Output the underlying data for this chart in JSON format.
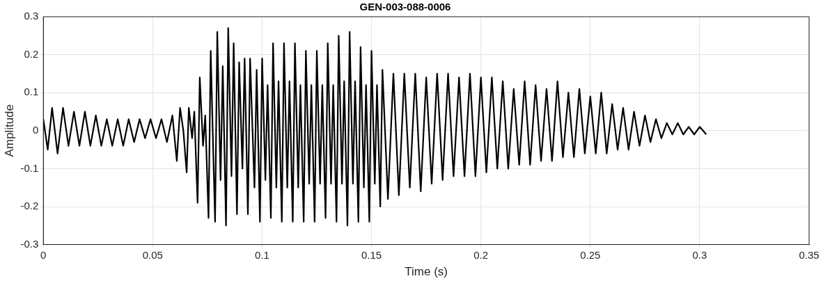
{
  "chart_data": {
    "type": "line",
    "title": "GEN-003-088-0006",
    "xlabel": "Time (s)",
    "ylabel": "Amplitude",
    "xlim": [
      0,
      0.35
    ],
    "xticks": [
      0,
      0.05,
      0.1,
      0.15,
      0.2,
      0.25,
      0.3,
      0.35
    ],
    "ylim": [
      -0.3,
      0.3
    ],
    "yticks": [
      -0.3,
      -0.2,
      -0.1,
      0,
      0.1,
      0.2,
      0.3
    ],
    "grid": true,
    "legend": false,
    "marker": "none",
    "line_style": "solid",
    "series": [
      {
        "color": "#000000",
        "x": [
          0,
          0.002,
          0.004,
          0.0065,
          0.009,
          0.0115,
          0.014,
          0.0165,
          0.019,
          0.0215,
          0.024,
          0.0265,
          0.029,
          0.0315,
          0.034,
          0.0365,
          0.039,
          0.0415,
          0.044,
          0.0465,
          0.049,
          0.0515,
          0.054,
          0.0565,
          0.059,
          0.061,
          0.0625,
          0.064,
          0.0655,
          0.0665,
          0.068,
          0.069,
          0.0705,
          0.0715,
          0.073,
          0.074,
          0.0755,
          0.0765,
          0.0775,
          0.0785,
          0.0795,
          0.081,
          0.082,
          0.0835,
          0.0845,
          0.086,
          0.087,
          0.0885,
          0.0895,
          0.091,
          0.092,
          0.0935,
          0.0945,
          0.0965,
          0.0975,
          0.099,
          0.1,
          0.1015,
          0.1025,
          0.104,
          0.105,
          0.1065,
          0.1075,
          0.109,
          0.11,
          0.1115,
          0.1125,
          0.114,
          0.115,
          0.1165,
          0.1175,
          0.119,
          0.12,
          0.1215,
          0.1225,
          0.124,
          0.125,
          0.1265,
          0.1275,
          0.129,
          0.13,
          0.1315,
          0.1325,
          0.134,
          0.135,
          0.1365,
          0.1375,
          0.139,
          0.14,
          0.1415,
          0.1425,
          0.144,
          0.145,
          0.1465,
          0.1475,
          0.149,
          0.15,
          0.1515,
          0.1525,
          0.154,
          0.155,
          0.1575,
          0.16,
          0.1625,
          0.165,
          0.1675,
          0.17,
          0.1725,
          0.175,
          0.1775,
          0.18,
          0.1825,
          0.185,
          0.1875,
          0.19,
          0.1925,
          0.195,
          0.1975,
          0.2,
          0.2025,
          0.205,
          0.2075,
          0.21,
          0.2125,
          0.215,
          0.2175,
          0.22,
          0.2225,
          0.225,
          0.2275,
          0.23,
          0.2325,
          0.235,
          0.2375,
          0.24,
          0.2425,
          0.245,
          0.2475,
          0.25,
          0.2525,
          0.255,
          0.2575,
          0.26,
          0.2625,
          0.265,
          0.2675,
          0.27,
          0.2725,
          0.275,
          0.2775,
          0.28,
          0.2825,
          0.285,
          0.2875,
          0.29,
          0.2925,
          0.295,
          0.2975,
          0.3,
          0.303
        ],
        "values": [
          0.03,
          -0.05,
          0.06,
          -0.06,
          0.06,
          -0.04,
          0.05,
          -0.04,
          0.05,
          -0.04,
          0.04,
          -0.04,
          0.03,
          -0.04,
          0.03,
          -0.04,
          0.03,
          -0.03,
          0.03,
          -0.02,
          0.03,
          -0.02,
          0.03,
          -0.03,
          0.04,
          -0.08,
          0.06,
          0.0,
          -0.11,
          0.06,
          -0.02,
          0.05,
          -0.19,
          0.14,
          -0.04,
          0.04,
          -0.23,
          0.21,
          -0.02,
          -0.24,
          0.26,
          -0.13,
          0.17,
          -0.25,
          0.27,
          -0.12,
          0.23,
          -0.22,
          0.18,
          -0.1,
          0.19,
          -0.22,
          0.19,
          -0.15,
          0.16,
          -0.24,
          0.19,
          -0.13,
          0.12,
          -0.23,
          0.23,
          -0.15,
          0.13,
          -0.24,
          0.23,
          -0.15,
          0.13,
          -0.24,
          0.23,
          -0.15,
          0.12,
          -0.24,
          0.21,
          -0.14,
          0.12,
          -0.24,
          0.21,
          -0.14,
          0.12,
          -0.23,
          0.23,
          -0.14,
          0.12,
          -0.24,
          0.25,
          -0.14,
          0.13,
          -0.25,
          0.26,
          -0.14,
          0.13,
          -0.24,
          0.22,
          -0.15,
          0.12,
          -0.24,
          0.21,
          -0.14,
          0.12,
          -0.2,
          0.16,
          -0.18,
          0.15,
          -0.17,
          0.15,
          -0.15,
          0.15,
          -0.16,
          0.14,
          -0.14,
          0.15,
          -0.13,
          0.15,
          -0.12,
          0.14,
          -0.12,
          0.15,
          -0.12,
          0.14,
          -0.11,
          0.14,
          -0.1,
          0.13,
          -0.1,
          0.11,
          -0.09,
          0.13,
          -0.09,
          0.12,
          -0.08,
          0.11,
          -0.08,
          0.13,
          -0.07,
          0.1,
          -0.07,
          0.11,
          -0.06,
          0.09,
          -0.06,
          0.1,
          -0.06,
          0.07,
          -0.05,
          0.06,
          -0.05,
          0.05,
          -0.04,
          0.04,
          -0.03,
          0.03,
          -0.02,
          0.02,
          -0.01,
          0.02,
          -0.01,
          0.01,
          -0.01,
          0.01,
          -0.01
        ]
      }
    ]
  }
}
